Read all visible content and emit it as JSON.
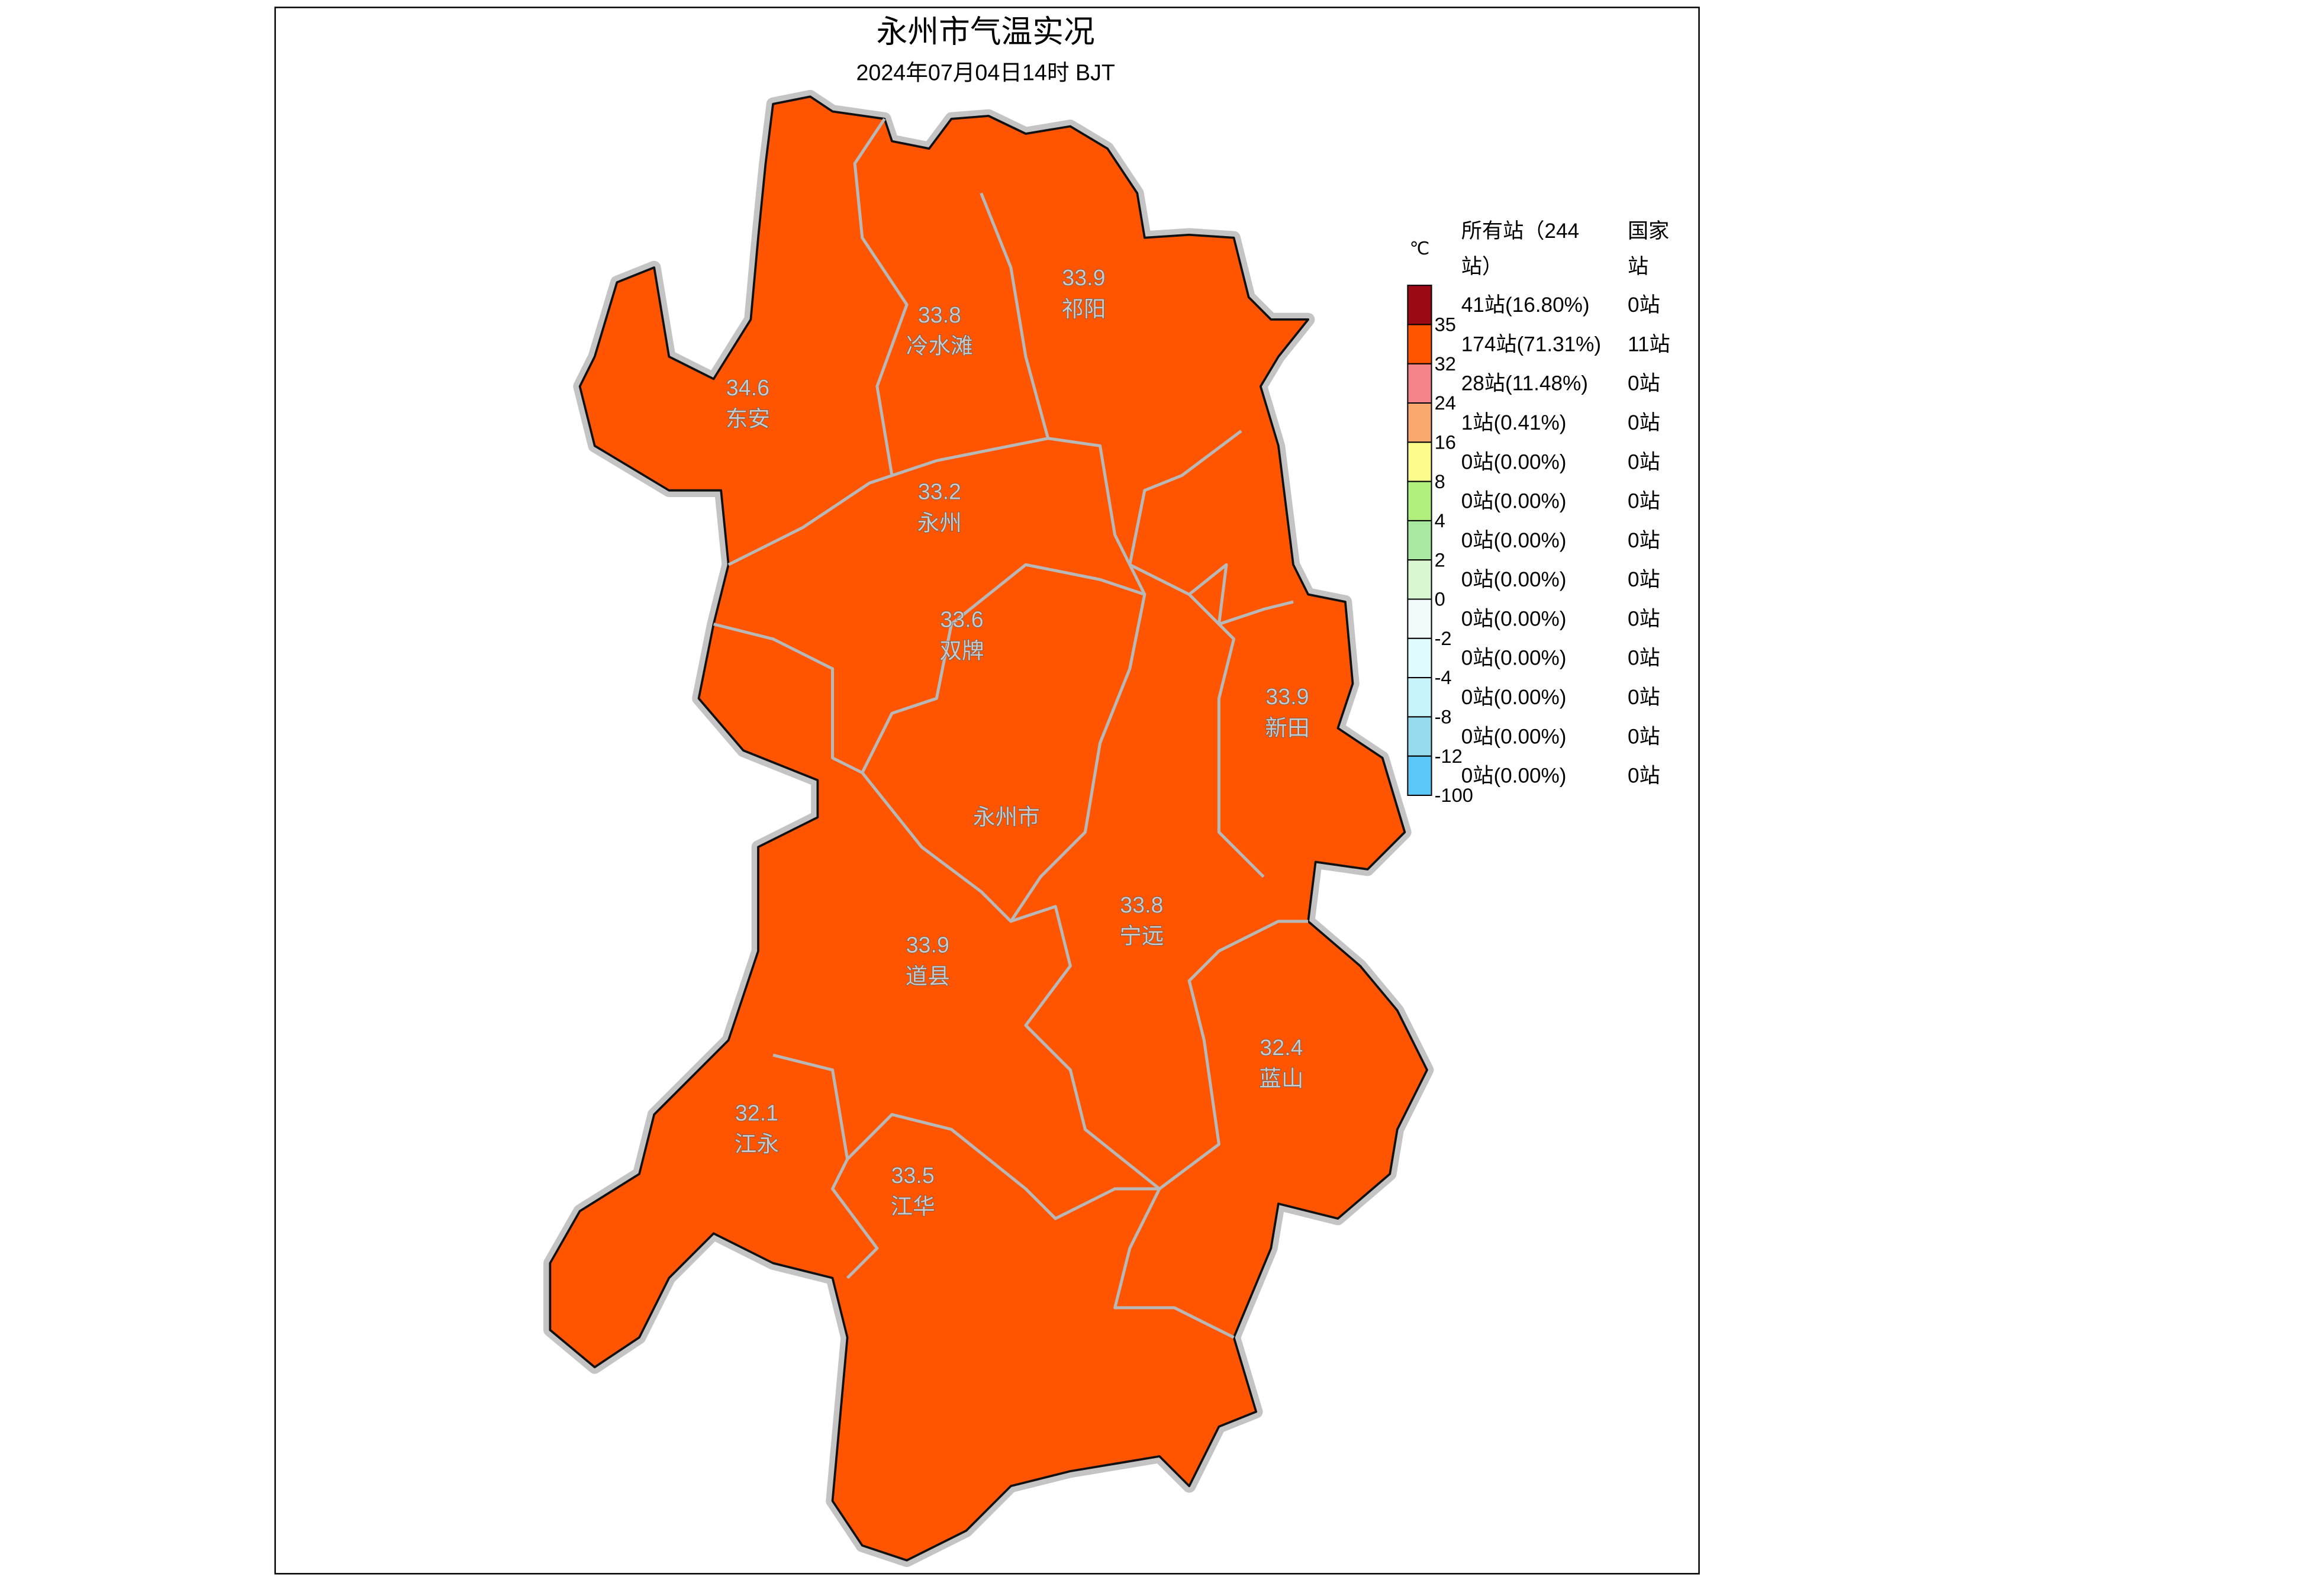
{
  "header": {
    "title": "永州市气温实况",
    "subtitle": "2024年07月04日14时 BJT"
  },
  "legend": {
    "unit": "℃",
    "all_header": "所有站（244站）",
    "national_header": "国家站",
    "classes": [
      {
        "color": "#9b0a14",
        "tick": 35,
        "all": "41站(16.80%)",
        "national": "0站"
      },
      {
        "color": "#ff5500",
        "tick": 32,
        "all": "174站(71.31%)",
        "national": "11站"
      },
      {
        "color": "#f5838a",
        "tick": 24,
        "all": "28站(11.48%)",
        "national": "0站"
      },
      {
        "color": "#f9a86e",
        "tick": 16,
        "all": "1站(0.41%)",
        "national": "0站"
      },
      {
        "color": "#fcfc8c",
        "tick": 8,
        "all": "0站(0.00%)",
        "national": "0站"
      },
      {
        "color": "#b2f07e",
        "tick": 4,
        "all": "0站(0.00%)",
        "national": "0站"
      },
      {
        "color": "#a8e8a0",
        "tick": 2,
        "all": "0站(0.00%)",
        "national": "0站"
      },
      {
        "color": "#d8f8d2",
        "tick": 0,
        "all": "0站(0.00%)",
        "national": "0站"
      },
      {
        "color": "#f2fbfb",
        "tick": -2,
        "all": "0站(0.00%)",
        "national": "0站"
      },
      {
        "color": "#e0fbfb",
        "tick": -4,
        "all": "0站(0.00%)",
        "national": "0站"
      },
      {
        "color": "#c6f4fa",
        "tick": -8,
        "all": "0站(0.00%)",
        "national": "0站"
      },
      {
        "color": "#96dcec",
        "tick": -12,
        "all": "0站(0.00%)",
        "national": "0站"
      },
      {
        "color": "#5cc8f8",
        "tick": -100,
        "all": "0站(0.00%)",
        "national": "0站"
      }
    ]
  },
  "districts": [
    {
      "name": "东安",
      "value": 34.6
    },
    {
      "name": "冷水滩",
      "value": 33.8
    },
    {
      "name": "祁阳",
      "value": 33.9
    },
    {
      "name": "永州",
      "value": 33.2
    },
    {
      "name": "双牌",
      "value": 33.6
    },
    {
      "name": "新田",
      "value": 33.9
    },
    {
      "name": "永州市"
    },
    {
      "name": "宁远",
      "value": 33.8
    },
    {
      "name": "道县",
      "value": 33.9
    },
    {
      "name": "蓝山",
      "value": 32.4
    },
    {
      "name": "江永",
      "value": 32.1
    },
    {
      "name": "江华",
      "value": 33.5
    }
  ]
}
